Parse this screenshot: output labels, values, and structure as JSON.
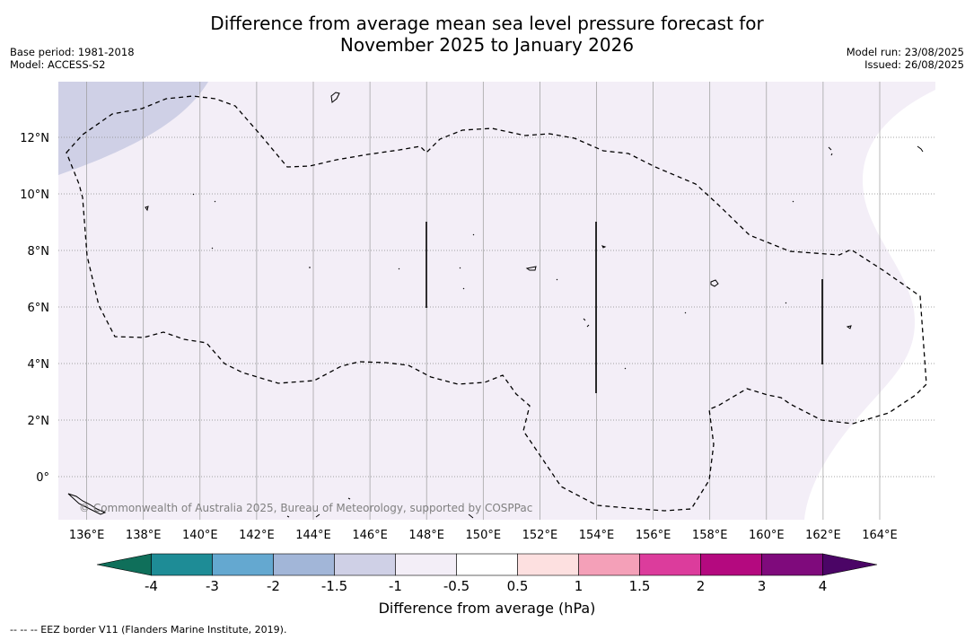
{
  "title": {
    "line1": "Difference from average mean sea level pressure forecast for",
    "line2": "November 2025 to January 2026"
  },
  "meta": {
    "base_period": "Base period: 1981-2018",
    "model": "Model: ACCESS-S2",
    "model_run": "Model run: 23/08/2025",
    "issued": "Issued: 26/08/2025"
  },
  "map": {
    "lon_ticks": [
      "136°E",
      "138°E",
      "140°E",
      "142°E",
      "144°E",
      "146°E",
      "148°E",
      "150°E",
      "152°E",
      "154°E",
      "156°E",
      "158°E",
      "160°E",
      "162°E",
      "164°E"
    ],
    "lon_values": [
      136,
      138,
      140,
      142,
      144,
      146,
      148,
      150,
      152,
      154,
      156,
      158,
      160,
      162,
      164
    ],
    "lat_ticks": [
      "12°N",
      "10°N",
      "8°N",
      "6°N",
      "4°N",
      "2°N",
      "0°"
    ],
    "lat_values": [
      12,
      10,
      8,
      6,
      4,
      2,
      0
    ],
    "copyright": "© Commonwealth of Australia 2025, Bureau of Meteorology, supported by COSPPac",
    "background_color": "#f3eef7",
    "negative_color": "#cfd0e6"
  },
  "colorbar": {
    "tick_labels": [
      "-4",
      "-3",
      "-2",
      "-1.5",
      "-1",
      "-0.5",
      "0.5",
      "1",
      "1.5",
      "2",
      "3",
      "4"
    ],
    "colors": [
      "#1e8c96",
      "#64a8d0",
      "#a2b6d8",
      "#cfd0e6",
      "#f3eef7",
      "#ffffff",
      "#fde0e0",
      "#f4a0b8",
      "#dc3c9c",
      "#b4097f",
      "#7f0a7c"
    ],
    "low_extend_color": "#0f6f5a",
    "high_extend_color": "#4b0566",
    "label": "Difference from average (hPa)"
  },
  "footnote": "--  --  -- EEZ border V11 (Flanders Marine Institute, 2019)."
}
